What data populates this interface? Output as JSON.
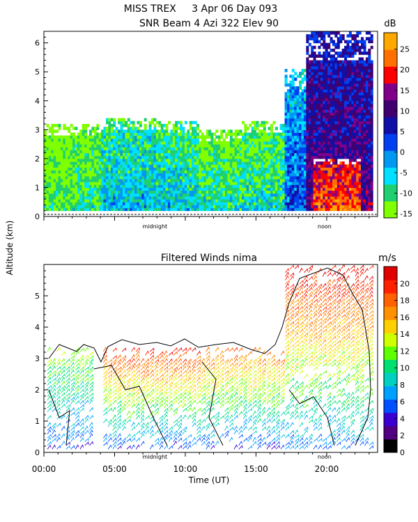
{
  "figure": {
    "title_line1": "MISS TREX     3 Apr 06 Day 093",
    "title_line2": "SNR Beam 4 Azi 322 Elev 90",
    "shared_ylabel": "Altitude (km)",
    "xlabel": "Time (UT)"
  },
  "chart_data": [
    {
      "type": "heatmap",
      "title": "SNR Beam 4 Azi 322 Elev 90",
      "ylabel": "Altitude (km)",
      "xlim": [
        0,
        23.6
      ],
      "ylim": [
        0,
        6.4
      ],
      "yticks": [
        0,
        1,
        2,
        3,
        4,
        5,
        6
      ],
      "annotations": [
        {
          "text": "midnight",
          "x": 7.85
        },
        {
          "text": "noon",
          "x": 19.85
        }
      ],
      "colorbar": {
        "unit": "dB",
        "ticks": [
          25,
          20,
          15,
          10,
          5,
          0,
          -5,
          -10,
          -15
        ],
        "range": [
          -16,
          29
        ],
        "colors": [
          "#80ff00",
          "#20d070",
          "#00e0ff",
          "#0098f0",
          "#0040f0",
          "#1010a8",
          "#400070",
          "#80008a",
          "#ff0000",
          "#ff7000",
          "#ffa800"
        ]
      },
      "regions": [
        {
          "time": [
            0.0,
            2.0
          ],
          "alt": [
            0.2,
            3.2
          ],
          "snr": -12
        },
        {
          "time": [
            2.0,
            4.0
          ],
          "alt": [
            0.2,
            3.2
          ],
          "snr": -9
        },
        {
          "time": [
            4.0,
            8.0
          ],
          "alt": [
            0.2,
            3.4
          ],
          "snr": -4
        },
        {
          "time": [
            8.0,
            11.0
          ],
          "alt": [
            0.2,
            3.3
          ],
          "snr": -5
        },
        {
          "time": [
            11.0,
            14.0
          ],
          "alt": [
            0.2,
            3.0
          ],
          "snr": -8
        },
        {
          "time": [
            14.0,
            17.0
          ],
          "alt": [
            0.2,
            3.3
          ],
          "snr": -7
        },
        {
          "time": [
            17.0,
            18.5
          ],
          "alt": [
            0.2,
            5.0
          ],
          "snr": 2
        },
        {
          "time": [
            18.5,
            23.2
          ],
          "alt": [
            0.2,
            6.3
          ],
          "snr": 12
        },
        {
          "time": [
            19.0,
            22.5
          ],
          "alt": [
            0.2,
            2.0
          ],
          "snr": 22
        }
      ]
    },
    {
      "type": "scatter",
      "title": "Filtered Winds nima",
      "xlabel": "Time (UT)",
      "ylabel": "Altitude (km)",
      "xlim": [
        0,
        23.6
      ],
      "ylim": [
        0,
        6.0
      ],
      "xticks": [
        "00:00",
        "05:00",
        "10:00",
        "15:00",
        "20:00"
      ],
      "xtick_values": [
        0,
        5,
        10,
        15,
        20
      ],
      "yticks": [
        0,
        1,
        2,
        3,
        4,
        5
      ],
      "annotations": [
        {
          "text": "midnight",
          "x": 7.85
        },
        {
          "text": "noon",
          "x": 19.85
        }
      ],
      "colorbar": {
        "unit": "m/s",
        "ticks": [
          20,
          18,
          16,
          14,
          12,
          10,
          8,
          6,
          4,
          2,
          0
        ],
        "range": [
          0,
          22
        ],
        "colors": [
          "#000000",
          "#500080",
          "#3a00d0",
          "#0050ff",
          "#00a0ff",
          "#00d0c0",
          "#00e070",
          "#60ff00",
          "#d0ff00",
          "#ffd000",
          "#ff9000",
          "#ff6000",
          "#ff2000",
          "#e00000"
        ]
      },
      "regions": [
        {
          "time": [
            0.0,
            3.5
          ],
          "alt": [
            0.0,
            3.3
          ],
          "speed": "5-13"
        },
        {
          "time": [
            4.0,
            11.0
          ],
          "alt": [
            0.0,
            3.3
          ],
          "speed": "5-20"
        },
        {
          "time": [
            11.0,
            17.0
          ],
          "alt": [
            0.0,
            3.3
          ],
          "speed": "5-18"
        },
        {
          "time": [
            17.0,
            23.3
          ],
          "alt": [
            0.0,
            5.9
          ],
          "speed": "6-21"
        }
      ]
    }
  ]
}
